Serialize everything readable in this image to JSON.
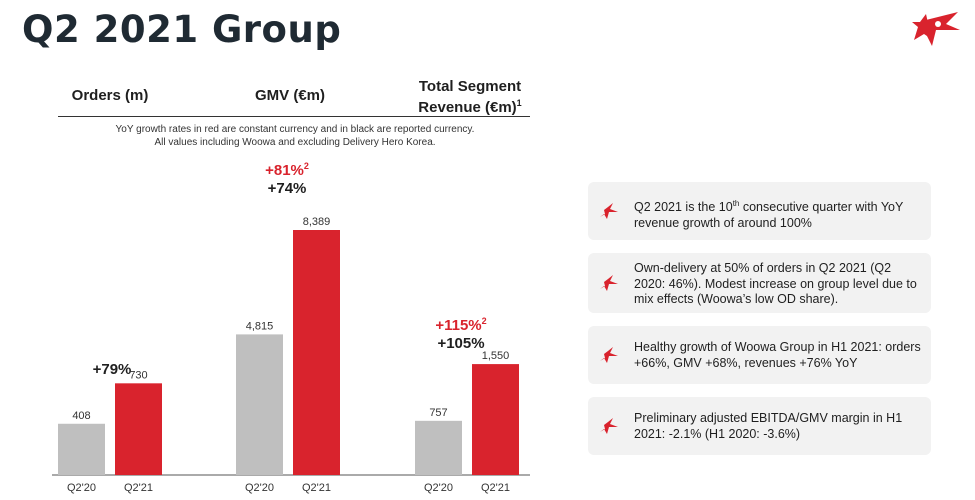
{
  "page": {
    "title": "Q2 2021 Group"
  },
  "columns": [
    {
      "label": "Orders (m)"
    },
    {
      "label": "GMV (€m)"
    },
    {
      "label_line1": "Total Segment",
      "label_line2": "Revenue (€m)",
      "label_sup": "1"
    }
  ],
  "note": {
    "line1": "YoY growth rates in red are constant currency and in black are reported currency.",
    "line2": "All values including Woowa and excluding Delivery Hero Korea."
  },
  "growth": [
    {
      "red": "",
      "red_sup": "",
      "black": "+79%"
    },
    {
      "red": "+81%",
      "red_sup": "2",
      "black": "+74%"
    },
    {
      "red": "+115%",
      "red_sup": "2",
      "black": "+105%"
    }
  ],
  "chart_data": [
    {
      "type": "bar",
      "categories": [
        "Q2'20",
        "Q2'21"
      ],
      "values": [
        408,
        730
      ],
      "value_labels": [
        "408",
        "730"
      ],
      "colors": [
        "#bfbfbf",
        "#d9232d"
      ]
    },
    {
      "type": "bar",
      "categories": [
        "Q2'20",
        "Q2'21"
      ],
      "values": [
        4815,
        8389
      ],
      "value_labels": [
        "4,815",
        "8,389"
      ],
      "colors": [
        "#bfbfbf",
        "#d9232d"
      ]
    },
    {
      "type": "bar",
      "categories": [
        "Q2'20",
        "Q2'21"
      ],
      "values": [
        757,
        1550
      ],
      "value_labels": [
        "757",
        "1,550"
      ],
      "colors": [
        "#bfbfbf",
        "#d9232d"
      ]
    }
  ],
  "bullets": [
    {
      "pre": "Q2 2021 is the 10",
      "sup": "th",
      "post": " consecutive quarter with YoY revenue growth of around 100%"
    },
    {
      "pre": "Own-delivery at 50% of orders in Q2 2021 (Q2 2020: 46%). Modest increase on group level due to mix effects (Woowa’s low OD share).",
      "sup": "",
      "post": ""
    },
    {
      "pre": "Healthy growth of Woowa Group in H1 2021: orders +66%, GMV +68%, revenues +76% YoY",
      "sup": "",
      "post": ""
    },
    {
      "pre": "Preliminary adjusted EBITDA/GMV margin in H1 2021: -2.1% (H1 2020: -3.6%)",
      "sup": "",
      "post": ""
    }
  ],
  "colors": {
    "accent": "#d9232d",
    "grey_bar": "#bfbfbf",
    "title": "#1f2a33",
    "panel": "#f2f2f2"
  },
  "icons": {
    "logo": "delivery-hero-star-logo",
    "bullet": "star-bullet-icon"
  }
}
